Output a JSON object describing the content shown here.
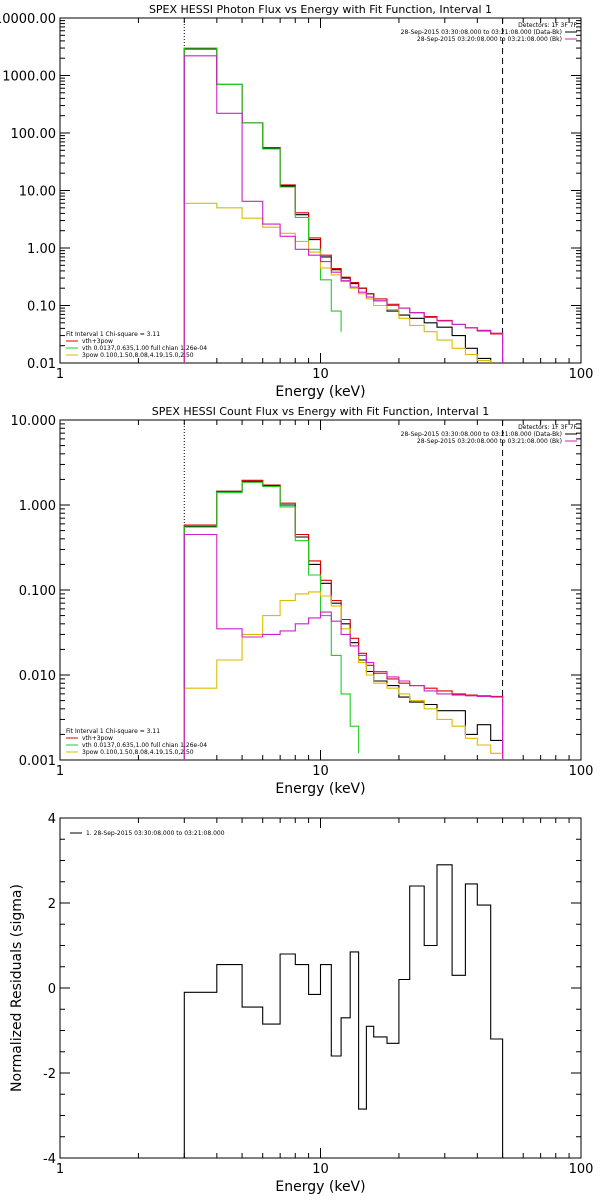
{
  "chart_data": [
    {
      "type": "line",
      "title": "SPEX HESSI Photon Flux vs Energy with Fit Function, Interval 1",
      "xlabel": "Energy (keV)",
      "ylabel": "",
      "x_scale": "log",
      "y_scale": "log",
      "xlim": [
        1,
        100
      ],
      "ylim": [
        0.01,
        10000
      ],
      "x_ticks": [
        {
          "v": 1,
          "label": "1"
        },
        {
          "v": 10,
          "label": "10"
        },
        {
          "v": 100,
          "label": "100"
        }
      ],
      "y_ticks": [
        {
          "v": 0.01,
          "label": "0.01"
        },
        {
          "v": 0.1,
          "label": "0.10"
        },
        {
          "v": 1,
          "label": "1.00"
        },
        {
          "v": 10,
          "label": "10.00"
        },
        {
          "v": 100,
          "label": "100.00"
        },
        {
          "v": 1000,
          "label": "1000.00"
        },
        {
          "v": 10000,
          "label": "10000.00"
        }
      ],
      "vlines": [
        {
          "x": 3,
          "style": "dotted"
        },
        {
          "x": 50,
          "style": "dashed"
        }
      ],
      "legend_top_right": [
        {
          "text": "Detectors: 1F 3F 7F",
          "color": ""
        },
        {
          "text": "28-Sep-2015 03:30:08.000 to 03:21:08.000 (Data-Bk)",
          "color": "#000000"
        },
        {
          "text": "28-Sep-2015 03:20:08.000 to 03:21:08.000 (Bk)",
          "color": "#cc22cc"
        }
      ],
      "legend_bottom_left": [
        {
          "text": "Fit Interval 1   Chi-square = 3.11",
          "color": ""
        },
        {
          "text": "vth+3pow",
          "color": "#dd0000"
        },
        {
          "text": "vth 0.0137,0.635,1.00  full chian 1.26e-04",
          "color": "#22cc22"
        },
        {
          "text": "3pow 0.100,1.50,8.08,4.19,15.0,2.50",
          "color": "#ddbb00"
        }
      ],
      "series": [
        {
          "color": "#000000",
          "edges": [
            3,
            4,
            5,
            6,
            7,
            8,
            9,
            10,
            11,
            12,
            13,
            14,
            15,
            16,
            18,
            20,
            22,
            25,
            28,
            32,
            36,
            40,
            45,
            50
          ],
          "values": [
            2900,
            700,
            150,
            55,
            12,
            3.8,
            1.4,
            0.7,
            0.42,
            0.3,
            0.24,
            0.2,
            0.16,
            0.12,
            0.08,
            0.068,
            0.06,
            0.05,
            0.042,
            0.03,
            0.018,
            0.012,
            0.01
          ]
        },
        {
          "color": "#dd0000",
          "edges": [
            3,
            4,
            5,
            6,
            7,
            8,
            9,
            10,
            11,
            12,
            13,
            14,
            15,
            16,
            18,
            20,
            22,
            25,
            28,
            32,
            36,
            40,
            45,
            50
          ],
          "values": [
            3000,
            700,
            150,
            56,
            12.5,
            4.1,
            1.5,
            0.75,
            0.44,
            0.31,
            0.25,
            0.2,
            0.16,
            0.13,
            0.105,
            0.09,
            0.075,
            0.064,
            0.055,
            0.047,
            0.041,
            0.036,
            0.032
          ]
        },
        {
          "color": "#22cc22",
          "edges": [
            3,
            4,
            5,
            6,
            7,
            8,
            9,
            10,
            11,
            12
          ],
          "values": [
            3000,
            700,
            150,
            53,
            11.5,
            3.4,
            0.95,
            0.28,
            0.08,
            0.035
          ]
        },
        {
          "color": "#ddbb00",
          "edges": [
            3,
            4,
            5,
            6,
            7,
            8,
            9,
            10,
            11,
            12,
            13,
            14,
            15,
            16,
            18,
            20,
            22,
            25,
            28,
            32,
            36,
            40,
            45,
            50
          ],
          "values": [
            6,
            5,
            3.3,
            2.3,
            1.8,
            1.3,
            0.85,
            0.45,
            0.34,
            0.26,
            0.2,
            0.16,
            0.13,
            0.1,
            0.085,
            0.06,
            0.045,
            0.035,
            0.025,
            0.018,
            0.014,
            0.011,
            0.009
          ]
        },
        {
          "color": "#cc22cc",
          "edges": [
            3,
            4,
            5,
            6,
            7,
            8,
            9,
            10,
            11,
            12,
            13,
            14,
            15,
            16,
            18,
            20,
            22,
            25,
            28,
            32,
            36,
            40,
            45,
            50
          ],
          "values": [
            2200,
            220,
            6.5,
            2.6,
            1.6,
            0.95,
            0.75,
            0.58,
            0.38,
            0.27,
            0.21,
            0.17,
            0.14,
            0.12,
            0.1,
            0.09,
            0.075,
            0.062,
            0.054,
            0.047,
            0.041,
            0.037,
            0.033
          ]
        }
      ]
    },
    {
      "type": "line",
      "title": "SPEX HESSI Count Flux vs Energy with Fit Function, Interval 1",
      "xlabel": "Energy (keV)",
      "ylabel": "",
      "x_scale": "log",
      "y_scale": "log",
      "xlim": [
        1,
        100
      ],
      "ylim": [
        0.001,
        10
      ],
      "x_ticks": [
        {
          "v": 1,
          "label": "1"
        },
        {
          "v": 10,
          "label": "10"
        },
        {
          "v": 100,
          "label": "100"
        }
      ],
      "y_ticks": [
        {
          "v": 0.001,
          "label": "0.001"
        },
        {
          "v": 0.01,
          "label": "0.010"
        },
        {
          "v": 0.1,
          "label": "0.100"
        },
        {
          "v": 1,
          "label": "1.000"
        },
        {
          "v": 10,
          "label": "10.000"
        }
      ],
      "vlines": [
        {
          "x": 3,
          "style": "dotted"
        },
        {
          "x": 50,
          "style": "dashed"
        }
      ],
      "legend_top_right": [
        {
          "text": "Detectors: 1F 3F 7F",
          "color": ""
        },
        {
          "text": "28-Sep-2015 03:30:08.000 to 03:21:08.000 (Data-Bk)",
          "color": "#000000"
        },
        {
          "text": "28-Sep-2015 03:20:08.000 to 03:21:08.000 (Bk)",
          "color": "#cc22cc"
        }
      ],
      "legend_bottom_left": [
        {
          "text": "Fit Interval 1   Chi-square = 3.11",
          "color": ""
        },
        {
          "text": "vth+3pow",
          "color": "#dd0000"
        },
        {
          "text": "vth 0.0137,0.635,1.00  full chian 1.26e-04",
          "color": "#22cc22"
        },
        {
          "text": "3pow 0.100,1.50,8.08,4.19,15.0,2.50",
          "color": "#ddbb00"
        }
      ],
      "series": [
        {
          "color": "#000000",
          "edges": [
            3,
            4,
            5,
            6,
            7,
            8,
            9,
            10,
            11,
            12,
            13,
            14,
            15,
            16,
            18,
            20,
            22,
            25,
            28,
            32,
            36,
            40,
            45,
            50
          ],
          "values": [
            0.56,
            1.45,
            1.9,
            1.7,
            1.0,
            0.42,
            0.2,
            0.12,
            0.07,
            0.04,
            0.024,
            0.015,
            0.011,
            0.0085,
            0.0075,
            0.0055,
            0.0048,
            0.0045,
            0.0038,
            0.0038,
            0.002,
            0.0026,
            0.0017
          ]
        },
        {
          "color": "#dd0000",
          "edges": [
            3,
            4,
            5,
            6,
            7,
            8,
            9,
            10,
            11,
            12,
            13,
            14,
            15,
            16,
            18,
            20,
            22,
            25,
            28,
            32,
            36,
            40,
            45,
            50
          ],
          "values": [
            0.58,
            1.45,
            1.95,
            1.72,
            1.05,
            0.45,
            0.22,
            0.13,
            0.075,
            0.045,
            0.027,
            0.018,
            0.013,
            0.0105,
            0.009,
            0.008,
            0.0075,
            0.007,
            0.0065,
            0.006,
            0.0058,
            0.0057,
            0.0056
          ]
        },
        {
          "color": "#22cc22",
          "edges": [
            3,
            4,
            5,
            6,
            7,
            8,
            9,
            10,
            11,
            12,
            13,
            14
          ],
          "values": [
            0.55,
            1.4,
            1.85,
            1.65,
            0.95,
            0.38,
            0.15,
            0.05,
            0.017,
            0.006,
            0.0025,
            0.0012
          ]
        },
        {
          "color": "#ddbb00",
          "edges": [
            3,
            4,
            5,
            6,
            7,
            8,
            9,
            10,
            11,
            12,
            13,
            14,
            15,
            16,
            18,
            20,
            22,
            25,
            28,
            32,
            36,
            40,
            45,
            50
          ],
          "values": [
            0.007,
            0.015,
            0.03,
            0.05,
            0.075,
            0.09,
            0.095,
            0.085,
            0.065,
            0.035,
            0.022,
            0.014,
            0.01,
            0.008,
            0.007,
            0.006,
            0.005,
            0.004,
            0.003,
            0.0025,
            0.0018,
            0.0015,
            0.0012
          ]
        },
        {
          "color": "#cc22cc",
          "edges": [
            3,
            4,
            5,
            6,
            7,
            8,
            9,
            10,
            11,
            12,
            13,
            14,
            15,
            16,
            18,
            20,
            22,
            25,
            28,
            32,
            36,
            40,
            45,
            50
          ],
          "values": [
            0.45,
            0.035,
            0.028,
            0.03,
            0.033,
            0.04,
            0.047,
            0.055,
            0.043,
            0.03,
            0.022,
            0.017,
            0.014,
            0.011,
            0.0095,
            0.0085,
            0.0075,
            0.0065,
            0.006,
            0.0058,
            0.0057,
            0.0056,
            0.0055
          ]
        }
      ]
    },
    {
      "type": "line",
      "title": "",
      "xlabel": "Energy (keV)",
      "ylabel": "Normalized Residuals (sigma)",
      "x_scale": "log",
      "y_scale": "linear",
      "xlim": [
        1,
        100
      ],
      "ylim": [
        -4,
        4
      ],
      "x_ticks": [
        {
          "v": 1,
          "label": "1"
        },
        {
          "v": 10,
          "label": "10"
        },
        {
          "v": 100,
          "label": "100"
        }
      ],
      "y_ticks": [
        {
          "v": -4,
          "label": "-4"
        },
        {
          "v": -2,
          "label": "-2"
        },
        {
          "v": 0,
          "label": "0"
        },
        {
          "v": 2,
          "label": "2"
        },
        {
          "v": 4,
          "label": "4"
        }
      ],
      "vlines": [],
      "legend_top_left": [
        {
          "text": "1. 28-Sep-2015 03:30:08.000 to 03:21:08.000",
          "color": "#000000"
        }
      ],
      "series": [
        {
          "color": "#000000",
          "edges": [
            3,
            4,
            5,
            6,
            7,
            8,
            9,
            10,
            11,
            12,
            13,
            14,
            15,
            16,
            18,
            20,
            22,
            25,
            28,
            32,
            36,
            40,
            45,
            50
          ],
          "values": [
            -0.1,
            0.55,
            -0.45,
            -0.85,
            0.8,
            0.55,
            -0.15,
            0.55,
            -1.6,
            -0.7,
            0.85,
            -2.85,
            -0.9,
            -1.15,
            -1.3,
            0.2,
            2.4,
            1.0,
            2.9,
            0.3,
            2.45,
            1.95,
            -1.2
          ],
          "floor": -4
        }
      ]
    }
  ]
}
